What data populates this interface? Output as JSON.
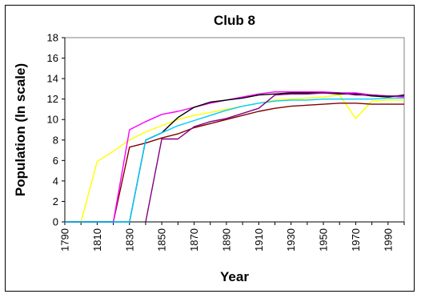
{
  "chart_data": {
    "type": "line",
    "title": "Club 8",
    "xlabel": "Year",
    "ylabel": "Population (ln scale)",
    "ylim": [
      0,
      18
    ],
    "yticks": [
      0,
      2,
      4,
      6,
      8,
      10,
      12,
      14,
      16,
      18
    ],
    "xlim": [
      1790,
      2000
    ],
    "xtick_labels": [
      "1790",
      "1810",
      "1830",
      "1850",
      "1870",
      "1890",
      "1910",
      "1930",
      "1950",
      "1970",
      "1990"
    ],
    "x": [
      1790,
      1800,
      1810,
      1820,
      1830,
      1840,
      1850,
      1860,
      1870,
      1880,
      1890,
      1900,
      1910,
      1920,
      1930,
      1940,
      1950,
      1960,
      1970,
      1980,
      1990,
      2000
    ],
    "grid": false,
    "legend": "none",
    "series": [
      {
        "color": "#ffff00",
        "values": [
          0,
          0,
          5.9,
          6.9,
          8.0,
          8.8,
          9.4,
          10.0,
          10.4,
          10.7,
          11.0,
          11.3,
          11.6,
          11.9,
          12.0,
          12.1,
          12.2,
          12.4,
          10.1,
          11.8,
          11.9,
          11.9
        ]
      },
      {
        "color": "#800000",
        "values": [
          0,
          0,
          0,
          0,
          7.3,
          7.7,
          8.2,
          8.6,
          9.2,
          9.6,
          10.0,
          10.4,
          10.8,
          11.1,
          11.3,
          11.4,
          11.5,
          11.6,
          11.6,
          11.5,
          11.5,
          11.5
        ]
      },
      {
        "color": "#ff00ff",
        "values": [
          0,
          0,
          0,
          0,
          9.0,
          9.8,
          10.5,
          10.8,
          11.2,
          11.6,
          11.9,
          12.2,
          12.5,
          12.7,
          12.7,
          12.7,
          12.7,
          12.6,
          12.6,
          12.4,
          12.3,
          12.2
        ]
      },
      {
        "color": "#000000",
        "values": [
          0,
          0,
          0,
          0,
          0,
          8.0,
          8.7,
          10.2,
          11.2,
          11.7,
          11.9,
          12.1,
          12.4,
          12.5,
          12.6,
          12.6,
          12.6,
          12.5,
          12.5,
          12.3,
          12.2,
          12.4
        ]
      },
      {
        "color": "#00ccff",
        "values": [
          0,
          0,
          0,
          0,
          0,
          8.0,
          8.7,
          9.4,
          9.9,
          10.4,
          10.9,
          11.3,
          11.6,
          11.8,
          11.9,
          11.9,
          12.0,
          12.0,
          12.0,
          12.0,
          12.1,
          12.1
        ]
      },
      {
        "color": "#800080",
        "values": [
          null,
          null,
          null,
          null,
          null,
          0,
          8.1,
          8.1,
          9.3,
          9.8,
          10.1,
          10.6,
          11.1,
          12.4,
          12.5,
          12.5,
          12.6,
          12.6,
          12.4,
          12.4,
          12.3,
          12.3
        ]
      }
    ]
  }
}
